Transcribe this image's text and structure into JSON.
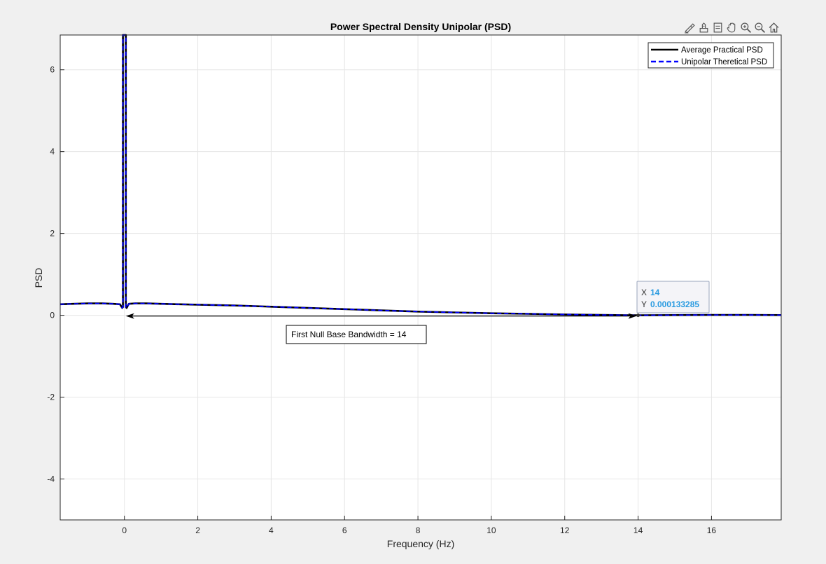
{
  "chart_data": {
    "type": "line",
    "title": "Power Spectral Density Unipolar (PSD)",
    "xlabel": "Frequency (Hz)",
    "ylabel": "PSD",
    "xlim": [
      -1.75,
      17.9
    ],
    "ylim": [
      -5,
      6.85
    ],
    "xticks": [
      0,
      2,
      4,
      6,
      8,
      10,
      12,
      14,
      16
    ],
    "xtick_labels": [
      "0",
      "2",
      "4",
      "6",
      "8",
      "10",
      "12",
      "14",
      "16"
    ],
    "yticks": [
      -4,
      -2,
      0,
      2,
      4,
      6
    ],
    "ytick_labels": [
      "-4",
      "-2",
      "0",
      "2",
      "4",
      "6"
    ],
    "grid": true,
    "legend_position": "top-right",
    "series": [
      {
        "name": "Average Practical PSD",
        "color": "#000000",
        "style": "solid",
        "x": [
          -1.75,
          -1.4,
          -1.0,
          -0.6,
          -0.3,
          -0.12,
          -0.06,
          -0.04,
          -0.04,
          -0.02,
          0.0,
          0.02,
          0.04,
          0.04,
          0.06,
          0.12,
          0.3,
          0.6,
          1.0,
          1.5,
          2.0,
          3.0,
          4.0,
          5.0,
          6.0,
          7.0,
          8.0,
          9.0,
          10.0,
          11.0,
          12.0,
          13.0,
          14.0,
          15.0,
          16.0,
          17.0,
          17.9
        ],
        "y": [
          0.27,
          0.28,
          0.29,
          0.29,
          0.28,
          0.27,
          0.18,
          0.2,
          6.85,
          6.85,
          6.85,
          6.85,
          6.85,
          0.2,
          0.18,
          0.28,
          0.29,
          0.29,
          0.28,
          0.27,
          0.26,
          0.24,
          0.21,
          0.18,
          0.15,
          0.12,
          0.09,
          0.07,
          0.05,
          0.035,
          0.02,
          0.008,
          0.000133285,
          0.005,
          0.008,
          0.008,
          0.005
        ]
      },
      {
        "name": "Unipolar Theretical PSD",
        "color": "#0000ff",
        "style": "dashed",
        "x": [
          -1.75,
          -1.4,
          -1.0,
          -0.6,
          -0.3,
          -0.12,
          -0.06,
          -0.04,
          -0.04,
          -0.02,
          0.0,
          0.02,
          0.04,
          0.04,
          0.06,
          0.12,
          0.3,
          0.6,
          1.0,
          1.5,
          2.0,
          3.0,
          4.0,
          5.0,
          6.0,
          7.0,
          8.0,
          9.0,
          10.0,
          11.0,
          12.0,
          13.0,
          14.0,
          15.0,
          16.0,
          17.0,
          17.9
        ],
        "y": [
          0.27,
          0.28,
          0.29,
          0.29,
          0.28,
          0.27,
          0.18,
          0.2,
          6.85,
          6.85,
          6.85,
          6.85,
          6.85,
          0.2,
          0.18,
          0.28,
          0.29,
          0.29,
          0.28,
          0.27,
          0.26,
          0.24,
          0.21,
          0.18,
          0.15,
          0.12,
          0.09,
          0.07,
          0.05,
          0.035,
          0.02,
          0.008,
          0.000133285,
          0.005,
          0.008,
          0.008,
          0.005
        ]
      }
    ],
    "annotations": {
      "arrow": {
        "x_start": 0,
        "x_end": 14,
        "y": 0
      },
      "textbox": "First Null Base Bandwidth = 14",
      "datatip": {
        "x_label": "X",
        "x_value": "14",
        "y_label": "Y",
        "y_value": "0.000133285",
        "x": 14,
        "y": 0.000133285
      }
    }
  },
  "toolbar": {
    "icons": [
      "brush-icon",
      "data-tips-icon",
      "legend-icon",
      "pan-icon",
      "zoom-in-icon",
      "zoom-out-icon",
      "home-icon"
    ]
  }
}
